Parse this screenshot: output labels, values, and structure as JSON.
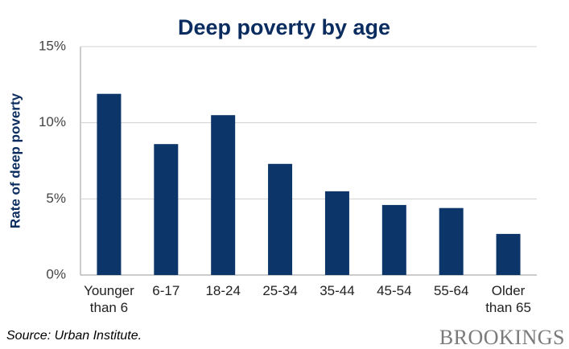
{
  "chart_data": {
    "type": "bar",
    "title": "Deep poverty by age",
    "y_label": "Rate of deep poverty",
    "categories": [
      "Younger than 6",
      "6-17",
      "18-24",
      "25-34",
      "35-44",
      "45-54",
      "55-64",
      "Older than 65"
    ],
    "values": [
      11.9,
      8.6,
      10.5,
      7.3,
      5.5,
      4.6,
      4.4,
      2.7
    ],
    "color": "#0c3669",
    "ylim": [
      0,
      15
    ],
    "yticks": [
      {
        "value": 0,
        "label": "0%"
      },
      {
        "value": 5,
        "label": "5%"
      },
      {
        "value": 10,
        "label": "10%"
      },
      {
        "value": 15,
        "label": "15%"
      }
    ],
    "grid": true
  },
  "source": "Source: Urban Institute.",
  "logo": "BROOKINGS"
}
